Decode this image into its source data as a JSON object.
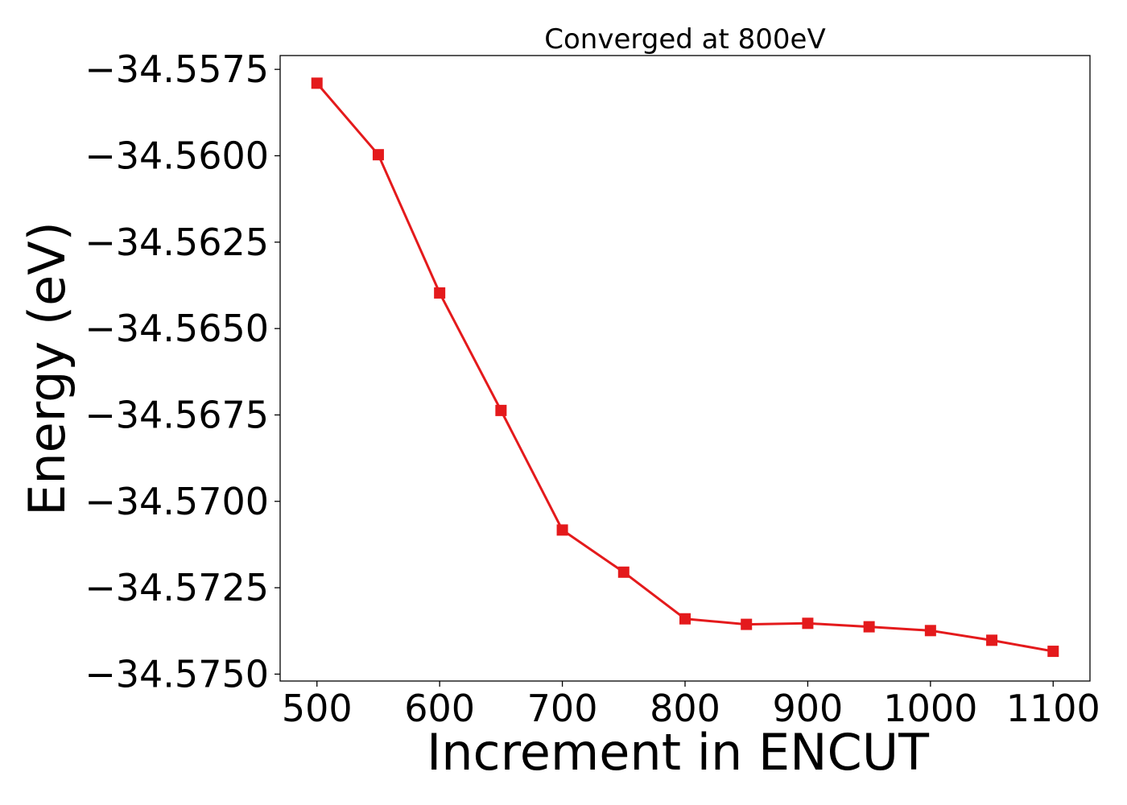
{
  "chart_data": {
    "type": "line",
    "title": "Converged at 800eV",
    "xlabel": "Increment in ENCUT",
    "ylabel": "Energy (eV)",
    "xlim": [
      470,
      1130
    ],
    "ylim": [
      -34.5752,
      -34.5571
    ],
    "xticks": [
      500,
      600,
      700,
      800,
      900,
      1000,
      1100
    ],
    "xtick_labels": [
      "500",
      "600",
      "700",
      "800",
      "900",
      "1000",
      "1100"
    ],
    "yticks": [
      -34.5575,
      -34.56,
      -34.5625,
      -34.565,
      -34.5675,
      -34.57,
      -34.5725,
      -34.575
    ],
    "ytick_labels": [
      "−34.5575",
      "−34.5600",
      "−34.5625",
      "−34.5650",
      "−34.5675",
      "−34.5700",
      "−34.5725",
      "−34.5750"
    ],
    "grid": false,
    "series": [
      {
        "color": "#e41a1c",
        "marker": "square",
        "x": [
          500,
          550,
          600,
          650,
          700,
          750,
          800,
          850,
          900,
          950,
          1000,
          1050,
          1100
        ],
        "y": [
          -34.5579,
          -34.55997,
          -34.56397,
          -34.56737,
          -34.57083,
          -34.57205,
          -34.5734,
          -34.57356,
          -34.57353,
          -34.57363,
          -34.57374,
          -34.57402,
          -34.57434
        ]
      }
    ]
  }
}
